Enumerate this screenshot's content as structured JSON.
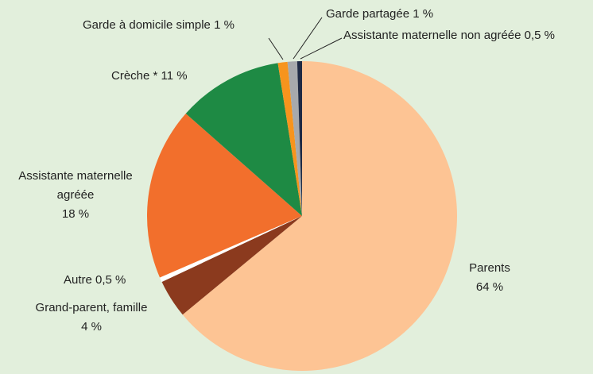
{
  "chart_data": {
    "type": "pie",
    "categories": [
      "Parents",
      "Grand-parent, famille",
      "Autre",
      "Assistante maternelle agréée",
      "Crèche *",
      "Garde à domicile simple",
      "Garde partagée",
      "Assistante maternelle non agréée"
    ],
    "values": [
      64,
      4,
      0.5,
      18,
      11,
      1,
      1,
      0.5
    ],
    "value_labels": [
      "64 %",
      "4 %",
      "0,5 %",
      "18 %",
      "11 %",
      "1 %",
      "1 %",
      "0,5 %"
    ],
    "colors": [
      "#fdc494",
      "#8b3a1e",
      "#ffffff",
      "#f26f2c",
      "#1e8a44",
      "#f7941d",
      "#a7a9ac",
      "#1f2a44"
    ]
  }
}
